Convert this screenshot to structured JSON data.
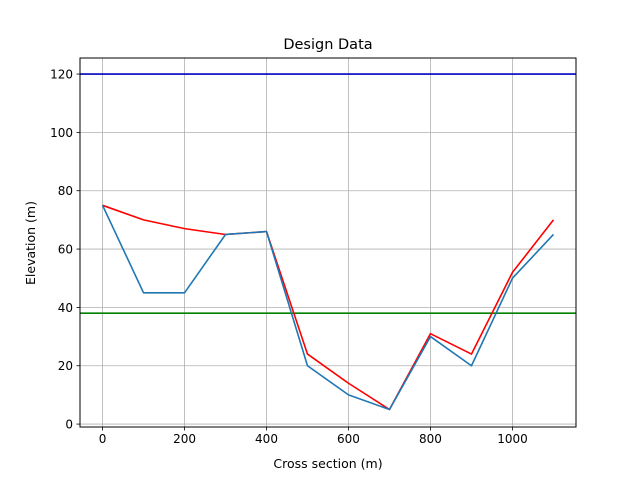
{
  "chart_data": {
    "type": "line",
    "title": "Design Data",
    "xlabel": "Cross section (m)",
    "ylabel": "Elevation (m)",
    "xlim": [
      -55,
      1155
    ],
    "ylim": [
      -1,
      125.5
    ],
    "grid": true,
    "x_ticks": [
      0,
      200,
      400,
      600,
      800,
      1000
    ],
    "y_ticks": [
      0,
      20,
      40,
      60,
      80,
      100,
      120
    ],
    "series": [
      {
        "color": "#ff0000",
        "x": [
          0,
          100,
          200,
          300,
          400,
          500,
          600,
          700,
          800,
          900,
          1000,
          1100
        ],
        "y": [
          75,
          70,
          67,
          65,
          66,
          24,
          14,
          5,
          31,
          24,
          52,
          70
        ]
      },
      {
        "color": "#1f77b4",
        "x": [
          0,
          100,
          200,
          300,
          400,
          500,
          600,
          700,
          800,
          900,
          1000,
          1100
        ],
        "y": [
          75,
          45,
          45,
          65,
          66,
          20,
          10,
          5,
          30,
          20,
          50,
          65
        ]
      }
    ],
    "hlines": [
      {
        "y": 120,
        "color": "#0000bf"
      },
      {
        "y": 38,
        "color": "#008000"
      }
    ]
  }
}
